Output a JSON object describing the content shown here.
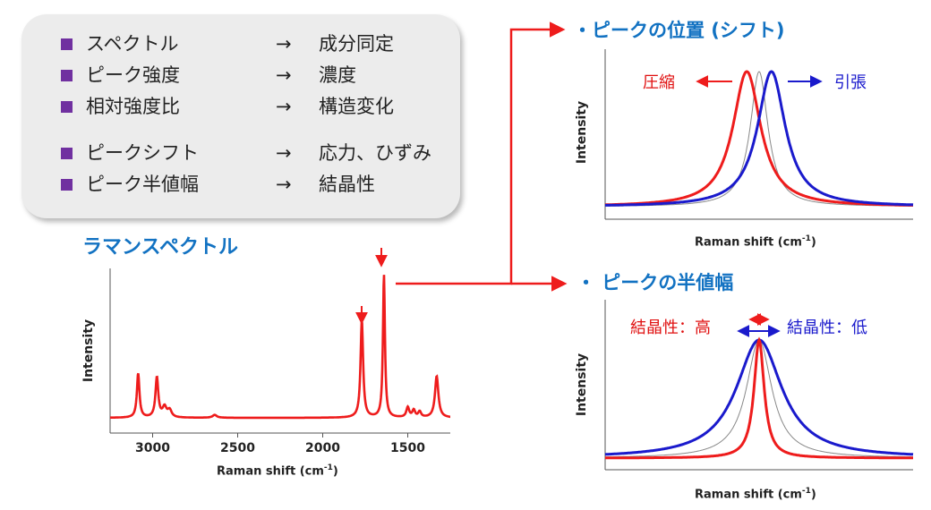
{
  "summary": {
    "items": [
      {
        "feature": "スペクトル",
        "arrow": "→",
        "meaning": "成分同定"
      },
      {
        "feature": "ピーク強度",
        "arrow": "→",
        "meaning": "濃度"
      },
      {
        "feature": "相対強度比",
        "arrow": "→",
        "meaning": "構造変化"
      },
      {
        "feature": "ピークシフト",
        "arrow": "→",
        "meaning": "応力、ひずみ"
      },
      {
        "feature": "ピーク半値幅",
        "arrow": "→",
        "meaning": "結晶性"
      }
    ],
    "bullet_color": "#7030a0"
  },
  "spectrum": {
    "title": "ラマンスペクトル",
    "ylabel": "Intensity",
    "xlabel_text": "Raman shift (cm",
    "xlabel_sup": "-1",
    "xlabel_end": ")"
  },
  "peak_shift": {
    "heading": "・ピークの位置 (シフト)",
    "compression_label": "圧縮",
    "tension_label": "引張",
    "ylabel": "Intensity",
    "xlabel_text": "Raman shift (cm",
    "xlabel_sup": "-1",
    "xlabel_end": ")"
  },
  "peak_width": {
    "heading": "・ ピークの半値幅",
    "high_label": "結晶性：高",
    "low_label": "結晶性：低",
    "ylabel": "Intensity",
    "xlabel_text": "Raman shift (cm",
    "xlabel_sup": "-1",
    "xlabel_end": ")"
  },
  "colors": {
    "accent_red": "#ee1c1c",
    "accent_blue": "#1a1acc",
    "heading_blue": "#1272c2"
  },
  "chart_data": [
    {
      "type": "line",
      "ylabel": "Intensity",
      "xlabel": "Raman shift (cm-1)",
      "x_reversed": true,
      "xlim": [
        3250,
        1250
      ],
      "x_ticks": [
        3000,
        2500,
        2000,
        1500
      ],
      "series": [
        {
          "color": "#ee1c1c",
          "peaks": [
            {
              "x": 3085,
              "height": 0.31,
              "width": 9
            },
            {
              "x": 2975,
              "height": 0.28,
              "width": 10
            },
            {
              "x": 2930,
              "height": 0.07,
              "width": 14
            },
            {
              "x": 2900,
              "height": 0.05,
              "width": 14
            },
            {
              "x": 2635,
              "height": 0.02,
              "width": 15
            },
            {
              "x": 1770,
              "height": 0.68,
              "width": 9
            },
            {
              "x": 1640,
              "height": 1.0,
              "width": 7
            },
            {
              "x": 1500,
              "height": 0.07,
              "width": 10
            },
            {
              "x": 1465,
              "height": 0.05,
              "width": 10
            },
            {
              "x": 1430,
              "height": 0.04,
              "width": 10
            },
            {
              "x": 1330,
              "height": 0.29,
              "width": 12
            }
          ]
        }
      ]
    },
    {
      "type": "line",
      "ylabel": "Intensity",
      "xlabel": "Raman shift (cm-1)",
      "xlim": [
        0,
        100
      ],
      "series": [
        {
          "color": "#888888",
          "center": 50,
          "width": 3.5,
          "height": 1.0
        },
        {
          "color": "#ee1c1c",
          "center": 46,
          "width": 5.5,
          "height": 1.0
        },
        {
          "color": "#1a1acc",
          "center": 54,
          "width": 5.5,
          "height": 1.0
        }
      ]
    },
    {
      "type": "line",
      "ylabel": "Intensity",
      "xlabel": "Raman shift (cm-1)",
      "xlim": [
        0,
        100
      ],
      "series": [
        {
          "color": "#888888",
          "center": 50,
          "width": 5,
          "height": 1.0
        },
        {
          "color": "#ee1c1c",
          "center": 50,
          "width": 2,
          "height": 1.0
        },
        {
          "color": "#1a1acc",
          "center": 50,
          "width": 9,
          "height": 1.0
        }
      ]
    }
  ]
}
